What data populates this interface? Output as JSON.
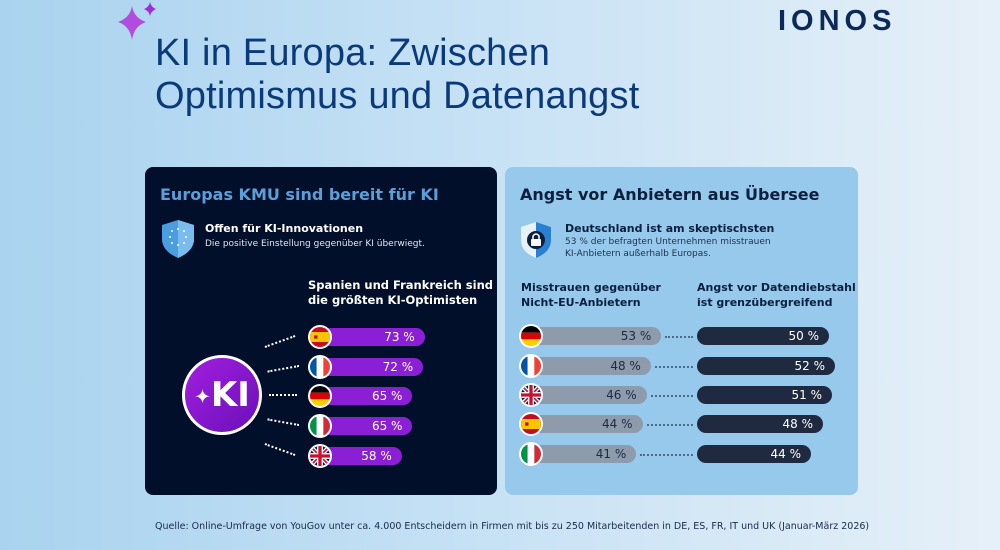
{
  "header": {
    "title_line1": "KI in Europa: Zwischen",
    "title_line2": "Optimismus und Datenangst",
    "logo": "IONOS",
    "sparkle_icon": "sparkle-icon"
  },
  "left_panel": {
    "heading": "Europas KMU sind bereit für KI",
    "badge_title": "Offen für KI-Innovationen",
    "badge_text": "Die positive Einstellung gegenüber KI überwiegt.",
    "chart_title_line1": "Spanien und Frankreich sind",
    "chart_title_line2": "die größten KI-Optimisten",
    "ki_label": "KI",
    "bar_color": "#8a1fd6"
  },
  "right_panel": {
    "heading": "Angst vor Anbietern aus Übersee",
    "badge_title": "Deutschland ist am skeptischsten",
    "badge_text_line1": "53 % der befragten Unternehmen misstrauen",
    "badge_text_line2": "KI-Anbietern außerhalb Europas.",
    "col1_line1": "Misstrauen gegenüber",
    "col1_line2": "Nicht-EU-Anbietern",
    "col2_line1": "Angst vor Datendiebstahl",
    "col2_line2": "ist grenzübergreifend",
    "col1_color": "#8d9bad",
    "col2_color": "#1f2a40"
  },
  "chart_data": [
    {
      "type": "bar",
      "orientation": "horizontal",
      "title": "Spanien und Frankreich sind die größten KI-Optimisten",
      "categories": [
        "ES",
        "FR",
        "DE",
        "IT",
        "UK"
      ],
      "values": [
        73,
        72,
        65,
        65,
        58
      ],
      "labels": [
        "73 %",
        "72 %",
        "65 %",
        "65 %",
        "58 %"
      ],
      "unit": "%"
    },
    {
      "type": "bar",
      "orientation": "horizontal",
      "categories": [
        "DE",
        "FR",
        "UK",
        "ES",
        "IT"
      ],
      "unit": "%",
      "series": [
        {
          "name": "Misstrauen gegenüber Nicht-EU-Anbietern",
          "values": [
            53,
            48,
            46,
            44,
            41
          ],
          "labels": [
            "53 %",
            "48 %",
            "46 %",
            "44 %",
            "41 %"
          ]
        },
        {
          "name": "Angst vor Datendiebstahl ist grenzübergreifend",
          "values": [
            50,
            52,
            51,
            48,
            44
          ],
          "labels": [
            "50 %",
            "52 %",
            "51 %",
            "48 %",
            "44 %"
          ]
        }
      ]
    }
  ],
  "footer": {
    "source": "Quelle: Online-Umfrage von YouGov unter ca. 4.000 Entscheidern in Firmen mit bis zu 250 Mitarbeitenden in DE, ES, FR, IT und UK (Januar-März 2026)"
  }
}
